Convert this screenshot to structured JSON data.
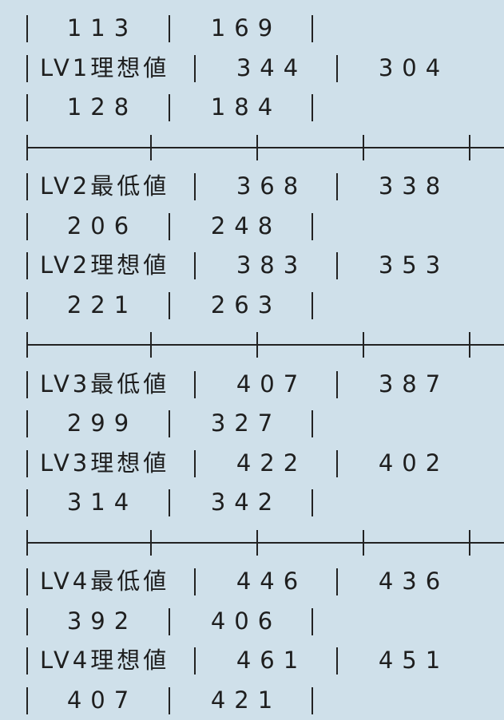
{
  "table_lines": [
    {
      "type": "values",
      "a": "113",
      "b": "169"
    },
    {
      "type": "level",
      "label": "LV1理想値",
      "a": "344",
      "b": "304"
    },
    {
      "type": "values",
      "a": "128",
      "b": "184"
    },
    {
      "type": "separator"
    },
    {
      "type": "level",
      "label": "LV2最低値",
      "a": "368",
      "b": "338"
    },
    {
      "type": "values",
      "a": "206",
      "b": "248"
    },
    {
      "type": "level",
      "label": "LV2理想値",
      "a": "383",
      "b": "353"
    },
    {
      "type": "values",
      "a": "221",
      "b": "263"
    },
    {
      "type": "separator"
    },
    {
      "type": "level",
      "label": "LV3最低値",
      "a": "407",
      "b": "387"
    },
    {
      "type": "values",
      "a": "299",
      "b": "327"
    },
    {
      "type": "level",
      "label": "LV3理想値",
      "a": "422",
      "b": "402"
    },
    {
      "type": "values",
      "a": "314",
      "b": "342"
    },
    {
      "type": "separator"
    },
    {
      "type": "level",
      "label": "LV4最低値",
      "a": "446",
      "b": "436"
    },
    {
      "type": "values",
      "a": "392",
      "b": "406"
    },
    {
      "type": "level",
      "label": "LV4理想値",
      "a": "461",
      "b": "451"
    },
    {
      "type": "values",
      "a": "407",
      "b": "421"
    }
  ]
}
